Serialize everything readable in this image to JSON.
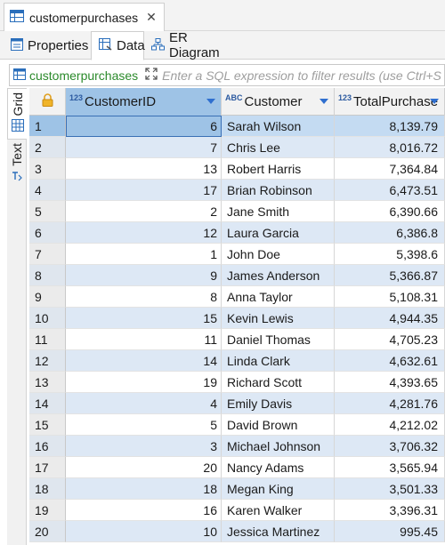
{
  "editor_tab": {
    "title": "customerpurchases",
    "close_icon": "close-icon"
  },
  "sub_tabs": [
    {
      "label": "Properties",
      "icon": "properties-icon",
      "active": false
    },
    {
      "label": "Data",
      "icon": "data-icon",
      "active": true
    },
    {
      "label": "ER Diagram",
      "icon": "er-diagram-icon",
      "active": false
    }
  ],
  "filter": {
    "entity": "customerpurchases",
    "placeholder": "Enter a SQL expression to filter results (use Ctrl+S"
  },
  "side_tabs": {
    "grid": "Grid",
    "text": "Text"
  },
  "columns": [
    {
      "type": "123",
      "label": "CustomerID"
    },
    {
      "type": "ABC",
      "label": "Customer"
    },
    {
      "type": "123",
      "label": "TotalPurchase"
    }
  ],
  "rows": [
    {
      "num": "1",
      "id": "6",
      "customer": "Sarah Wilson",
      "total": "8,139.79"
    },
    {
      "num": "2",
      "id": "7",
      "customer": "Chris Lee",
      "total": "8,016.72"
    },
    {
      "num": "3",
      "id": "13",
      "customer": "Robert Harris",
      "total": "7,364.84"
    },
    {
      "num": "4",
      "id": "17",
      "customer": "Brian Robinson",
      "total": "6,473.51"
    },
    {
      "num": "5",
      "id": "2",
      "customer": "Jane Smith",
      "total": "6,390.66"
    },
    {
      "num": "6",
      "id": "12",
      "customer": "Laura Garcia",
      "total": "6,386.8"
    },
    {
      "num": "7",
      "id": "1",
      "customer": "John Doe",
      "total": "5,398.6"
    },
    {
      "num": "8",
      "id": "9",
      "customer": "James Anderson",
      "total": "5,366.87"
    },
    {
      "num": "9",
      "id": "8",
      "customer": "Anna Taylor",
      "total": "5,108.31"
    },
    {
      "num": "10",
      "id": "15",
      "customer": "Kevin Lewis",
      "total": "4,944.35"
    },
    {
      "num": "11",
      "id": "11",
      "customer": "Daniel Thomas",
      "total": "4,705.23"
    },
    {
      "num": "12",
      "id": "14",
      "customer": "Linda Clark",
      "total": "4,632.61"
    },
    {
      "num": "13",
      "id": "19",
      "customer": "Richard Scott",
      "total": "4,393.65"
    },
    {
      "num": "14",
      "id": "4",
      "customer": "Emily Davis",
      "total": "4,281.76"
    },
    {
      "num": "15",
      "id": "5",
      "customer": "David Brown",
      "total": "4,212.02"
    },
    {
      "num": "16",
      "id": "3",
      "customer": "Michael Johnson",
      "total": "3,706.32"
    },
    {
      "num": "17",
      "id": "20",
      "customer": "Nancy Adams",
      "total": "3,565.94"
    },
    {
      "num": "18",
      "id": "18",
      "customer": "Megan King",
      "total": "3,501.33"
    },
    {
      "num": "19",
      "id": "16",
      "customer": "Karen Walker",
      "total": "3,396.31"
    },
    {
      "num": "20",
      "id": "10",
      "customer": "Jessica Martinez",
      "total": "995.45"
    }
  ],
  "selected_row": 0,
  "colors": {
    "selection": "#9ec3e6",
    "alt_row": "#dde8f5",
    "entity_green": "#2b8a2b",
    "sort_arrow": "#2f6fcf"
  }
}
